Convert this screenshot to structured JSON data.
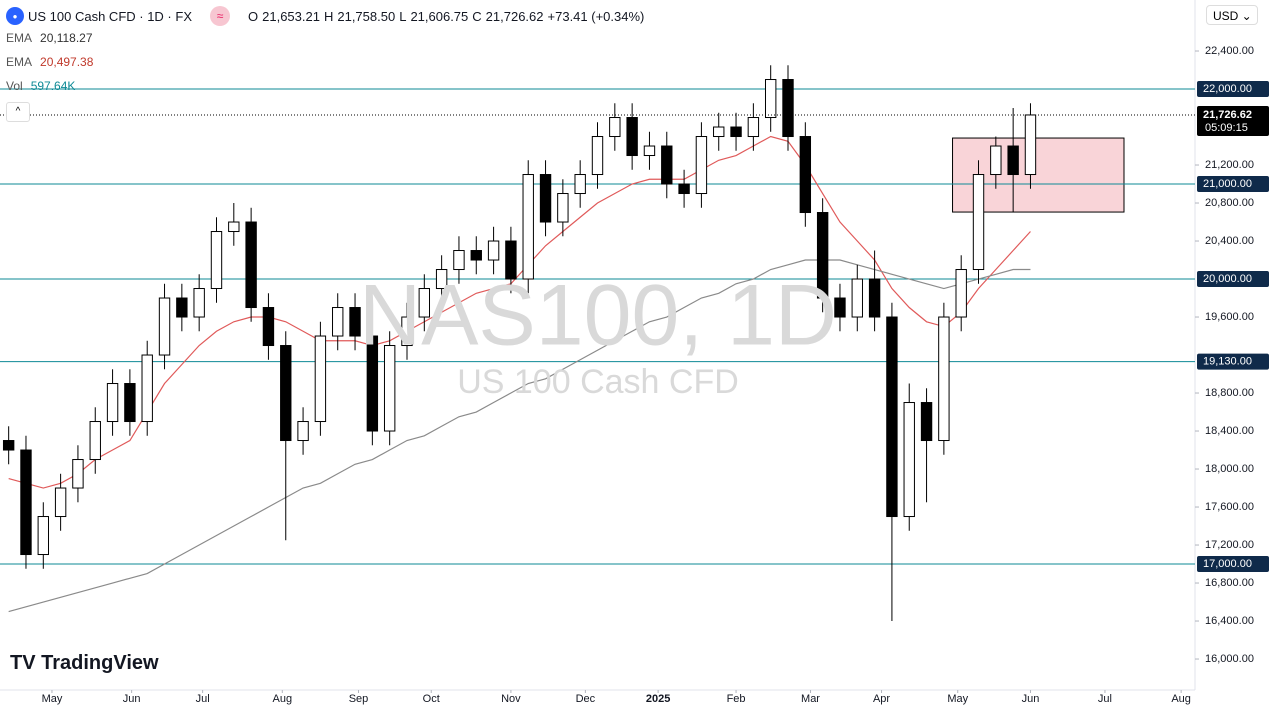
{
  "chart_data": {
    "type": "candlestick",
    "header": {
      "symbol": "US 100 Cash CFD · 1D · FX",
      "o_label": "O",
      "open": "21,653.21",
      "h_label": "H",
      "high": "21,758.50",
      "l_label": "L",
      "low": "21,606.75",
      "c_label": "C",
      "close": "21,726.62",
      "change": "+73.41 (+0.34%)"
    },
    "indicators": [
      {
        "name": "EMA",
        "value": "20,118.27"
      },
      {
        "name": "EMA",
        "value": "20,497.38"
      },
      {
        "name": "Vol",
        "value": "597.64K"
      }
    ],
    "currency": "USD",
    "watermark": {
      "title": "NAS100, 1D",
      "subtitle": "US 100 Cash CFD"
    },
    "brand": "TradingView",
    "last_price": {
      "value": 21726.62,
      "label": "21,726.62",
      "countdown": "05:09:15"
    },
    "open": [
      18300,
      18200,
      17100,
      17500,
      17800,
      18100,
      18500,
      18900,
      18500,
      19200,
      19800,
      19600,
      19900,
      20500,
      20600,
      19700,
      19300,
      18300,
      18500,
      19400,
      19700,
      19400,
      18400,
      19300,
      19600,
      19900,
      20100,
      20300,
      20200,
      20400,
      20000,
      21100,
      20600,
      20900,
      21100,
      21500,
      21700,
      21300,
      21400,
      21000,
      20900,
      21500,
      21600,
      21500,
      21700,
      22100,
      21500,
      20700,
      19800,
      19600,
      20000,
      19600,
      17500,
      18700,
      18300,
      19600,
      20100,
      21100,
      21400,
      21100
    ],
    "high": [
      18450,
      18350,
      17650,
      17950,
      18250,
      18650,
      19050,
      19050,
      19350,
      19950,
      19950,
      20050,
      20650,
      20800,
      20750,
      19850,
      19450,
      18650,
      19550,
      19850,
      19850,
      19550,
      19450,
      19750,
      20050,
      20250,
      20450,
      20450,
      20550,
      20550,
      21250,
      21250,
      21050,
      21250,
      21650,
      21850,
      21850,
      21550,
      21550,
      21150,
      21650,
      21750,
      21750,
      21850,
      22250,
      22250,
      21650,
      20850,
      19950,
      20150,
      20300,
      19750,
      18900,
      18850,
      19750,
      20250,
      21250,
      21500,
      21800,
      21850
    ],
    "low": [
      18050,
      16950,
      16950,
      17350,
      17650,
      17950,
      18350,
      18350,
      18350,
      19050,
      19450,
      19450,
      19750,
      20350,
      19550,
      19150,
      17250,
      18150,
      18350,
      19250,
      19250,
      18250,
      18250,
      19150,
      19450,
      19750,
      19950,
      20050,
      20050,
      19850,
      19850,
      20450,
      20450,
      20750,
      20950,
      21350,
      21150,
      21150,
      20850,
      20750,
      20750,
      21350,
      21350,
      21350,
      21550,
      21350,
      20550,
      19650,
      19450,
      19450,
      19450,
      16400,
      17350,
      17650,
      18150,
      19450,
      19950,
      20950,
      20700,
      20950
    ],
    "close": [
      18200,
      17100,
      17500,
      17800,
      18100,
      18500,
      18900,
      18500,
      19200,
      19800,
      19600,
      19900,
      20500,
      20600,
      19700,
      19300,
      18300,
      18500,
      19400,
      19700,
      19400,
      18400,
      19300,
      19600,
      19900,
      20100,
      20300,
      20200,
      20400,
      20000,
      21100,
      20600,
      20900,
      21100,
      21500,
      21700,
      21300,
      21400,
      21000,
      20900,
      21500,
      21600,
      21500,
      21700,
      22100,
      21500,
      20700,
      19800,
      19600,
      20000,
      19600,
      17500,
      18700,
      18300,
      19600,
      20100,
      21100,
      21400,
      21100,
      21727
    ],
    "up_color": "#ffffff",
    "down_color": "#000000",
    "series": [
      {
        "color": "#e05a5a",
        "values": [
          17900,
          17850,
          17800,
          17850,
          17950,
          18100,
          18200,
          18300,
          18600,
          18900,
          19100,
          19300,
          19450,
          19550,
          19600,
          19600,
          19550,
          19450,
          19350,
          19350,
          19350,
          19300,
          19350,
          19450,
          19550,
          19650,
          19750,
          19850,
          19900,
          19950,
          20150,
          20350,
          20500,
          20650,
          20800,
          20900,
          21000,
          21050,
          21050,
          21050,
          21150,
          21250,
          21300,
          21400,
          21500,
          21450,
          21200,
          20900,
          20600,
          20400,
          20200,
          19900,
          19700,
          19550,
          19500,
          19650,
          19900,
          20100,
          20300,
          20500
        ]
      },
      {
        "color": "#8a8a8a",
        "values": [
          16500,
          16550,
          16600,
          16650,
          16700,
          16750,
          16800,
          16850,
          16900,
          17000,
          17100,
          17200,
          17300,
          17400,
          17500,
          17600,
          17700,
          17800,
          17850,
          17950,
          18050,
          18100,
          18200,
          18300,
          18350,
          18450,
          18550,
          18600,
          18700,
          18800,
          18900,
          18950,
          19050,
          19150,
          19250,
          19350,
          19450,
          19550,
          19600,
          19700,
          19800,
          19850,
          19950,
          20000,
          20100,
          20150,
          20200,
          20200,
          20200,
          20150,
          20100,
          20050,
          20000,
          19950,
          19900,
          19950,
          20000,
          20050,
          20100,
          20100
        ]
      }
    ],
    "levels": [
      {
        "value": 22000,
        "label": "22,000.00"
      },
      {
        "value": 21000,
        "label": "21,000.00"
      },
      {
        "value": 20000,
        "label": "20,000.00"
      },
      {
        "value": 19130,
        "label": "19,130.00"
      },
      {
        "value": 17000,
        "label": "17,000.00"
      }
    ],
    "level_color": "#0e8a96",
    "zone": {
      "x": [
        55,
        64.9
      ],
      "y": [
        20705,
        21484
      ],
      "color": "#f9d4d8"
    },
    "xlim": [
      0,
      69
    ],
    "xticks": [
      {
        "value": 3.0,
        "label": "May"
      },
      {
        "value": 7.6,
        "label": "Jun"
      },
      {
        "value": 11.7,
        "label": "Jul"
      },
      {
        "value": 16.3,
        "label": "Aug"
      },
      {
        "value": 20.7,
        "label": "Sep"
      },
      {
        "value": 24.9,
        "label": "Oct"
      },
      {
        "value": 29.5,
        "label": "Nov"
      },
      {
        "value": 33.8,
        "label": "Dec"
      },
      {
        "value": 38.0,
        "label": "2025"
      },
      {
        "value": 42.5,
        "label": "Feb"
      },
      {
        "value": 46.8,
        "label": "Mar"
      },
      {
        "value": 50.9,
        "label": "Apr"
      },
      {
        "value": 55.3,
        "label": "May"
      },
      {
        "value": 59.5,
        "label": "Jun"
      },
      {
        "value": 63.8,
        "label": "Jul"
      },
      {
        "value": 68.2,
        "label": "Aug"
      }
    ],
    "ylim": [
      15674,
      22937
    ],
    "yticks": [
      {
        "value": 16000,
        "label": "16,000.00"
      },
      {
        "value": 16400,
        "label": "16,400.00"
      },
      {
        "value": 16800,
        "label": "16,800.00"
      },
      {
        "value": 17200,
        "label": "17,200.00"
      },
      {
        "value": 17600,
        "label": "17,600.00"
      },
      {
        "value": 18000,
        "label": "18,000.00"
      },
      {
        "value": 18400,
        "label": "18,400.00"
      },
      {
        "value": 18800,
        "label": "18,800.00"
      },
      {
        "value": 19600,
        "label": "19,600.00"
      },
      {
        "value": 20400,
        "label": "20,400.00"
      },
      {
        "value": 20800,
        "label": "20,800.00"
      },
      {
        "value": 21200,
        "label": "21,200.00"
      },
      {
        "value": 22400,
        "label": "22,400.00"
      }
    ]
  }
}
